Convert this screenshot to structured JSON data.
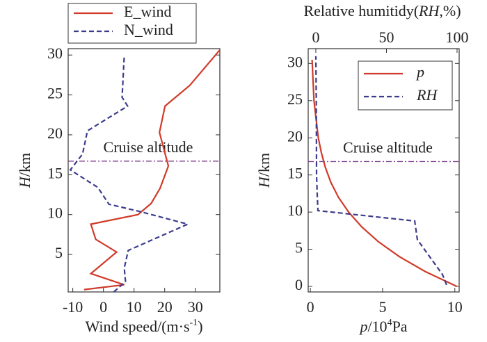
{
  "chart_data": [
    {
      "type": "line",
      "xlabel": [
        {
          "text": "Wind speed/(m·s"
        },
        {
          "text": "-1",
          "sup": true
        },
        {
          "text": ")"
        }
      ],
      "ylabel": [
        {
          "text": "H",
          "italic": true
        },
        {
          "text": "/km"
        }
      ],
      "xlim": [
        -11.5,
        38
      ],
      "xticks": [
        -10,
        0,
        10,
        20,
        30
      ],
      "ylim": [
        0.3,
        30.8
      ],
      "yticks": [
        5,
        10,
        15,
        20,
        25,
        30
      ],
      "legend": "above",
      "series": [
        {
          "name": "E_wind",
          "color": "#d03a2a",
          "dash": false,
          "x": [
            -6.3,
            6.8,
            -4.1,
            4.3,
            -2.5,
            -4.1,
            11.3,
            15.6,
            18.5,
            21.2,
            18.3,
            20.1,
            28.2,
            37.9
          ],
          "y": [
            0.6,
            1.2,
            2.6,
            5.3,
            6.9,
            8.8,
            10.0,
            11.4,
            13.3,
            16.1,
            20.3,
            23.6,
            26.2,
            30.6
          ]
        },
        {
          "name": "N_wind",
          "color": "#3c3c8c",
          "dash": true,
          "x": [
            3.4,
            7.2,
            6.8,
            8.1,
            27.5,
            11.7,
            1.8,
            -1.8,
            -10.8,
            -6.8,
            -5.2,
            7.9,
            6.1,
            6.8
          ],
          "y": [
            0.3,
            1.6,
            3.3,
            5.5,
            8.8,
            10.4,
            11.3,
            13.4,
            15.6,
            17.6,
            20.5,
            23.6,
            24.7,
            29.9
          ]
        }
      ],
      "annotations": [
        {
          "text": "Cruise altitude",
          "y": 16.7,
          "color": "#7b3a8c"
        }
      ]
    },
    {
      "type": "line",
      "xlabel": [
        {
          "text": "p",
          "italic": true
        },
        {
          "text": "/10"
        },
        {
          "text": "4",
          "sup": true
        },
        {
          "text": "Pa"
        }
      ],
      "x2label": [
        {
          "text": "Relative humitidy("
        },
        {
          "text": "RH",
          "italic": true
        },
        {
          "text": ",%)"
        }
      ],
      "ylabel": [
        {
          "text": "H",
          "italic": true
        },
        {
          "text": "/km"
        }
      ],
      "xlim": [
        -0.15,
        10.3
      ],
      "xticks": [
        0,
        5,
        10
      ],
      "x2lim": [
        -5.4,
        101.5
      ],
      "x2ticks": [
        0,
        50,
        100
      ],
      "ylim": [
        -0.75,
        32
      ],
      "yticks": [
        0,
        5,
        10,
        15,
        20,
        25,
        30
      ],
      "legend": "upper right",
      "series": [
        {
          "name": "p",
          "italic": true,
          "color": "#d03a2a",
          "dash": false,
          "x": [
            10.13,
            7.95,
            6.16,
            4.72,
            3.56,
            2.65,
            1.94,
            1.42,
            1.04,
            0.76,
            0.55,
            0.25,
            0.12
          ],
          "y": [
            0,
            2,
            4,
            6,
            8,
            10,
            12,
            14,
            16,
            18,
            20,
            25,
            30.5
          ]
        },
        {
          "name": "RH",
          "italic": true,
          "color": "#3c3c8c",
          "dash": true,
          "axis": "x2",
          "x": [
            92.6,
            89.7,
            71.9,
            70,
            1.5,
            1,
            0.5,
            0.3,
            0
          ],
          "y": [
            0.2,
            1.6,
            6.3,
            8.8,
            10.2,
            12.3,
            15,
            25,
            31
          ]
        }
      ],
      "annotations": [
        {
          "text": "Cruise altitude",
          "y": 16.8,
          "color": "#7b3a8c"
        }
      ]
    }
  ]
}
